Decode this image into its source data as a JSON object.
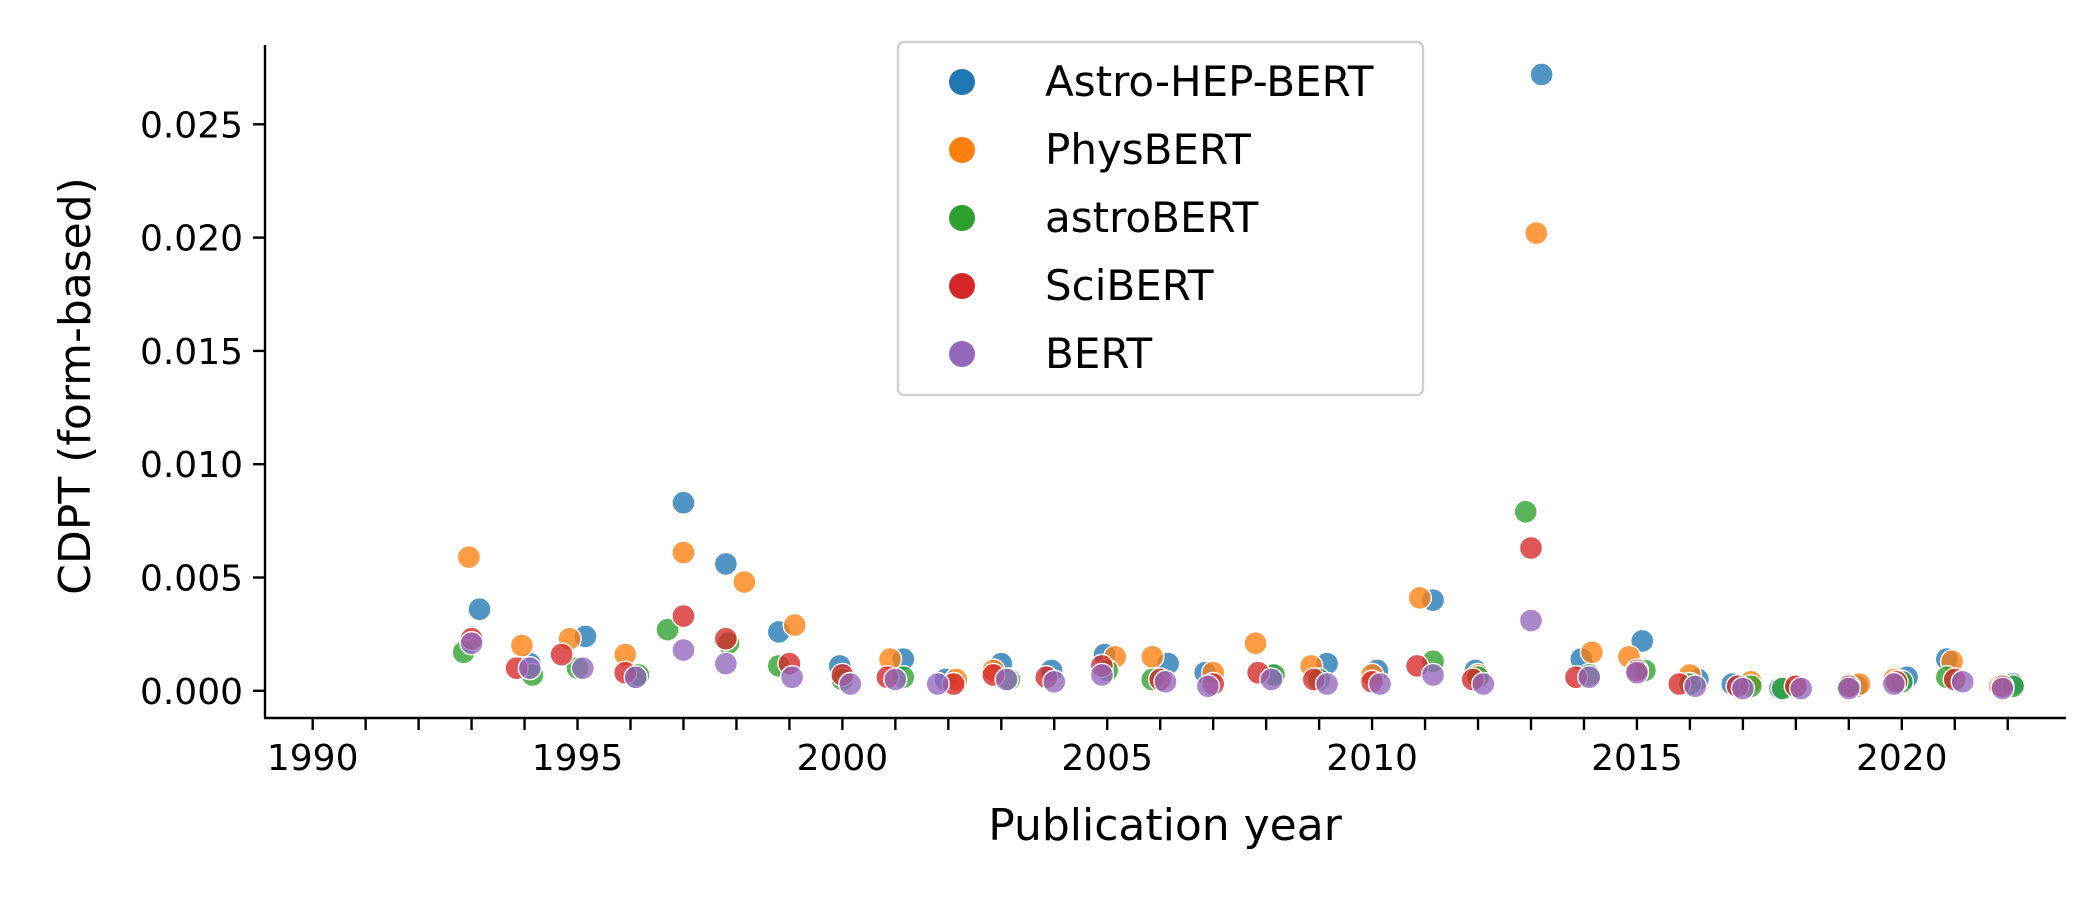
{
  "chart_data": {
    "type": "scatter",
    "title": "",
    "xlabel": "Publication year",
    "ylabel": "CDPT (form-based)",
    "xlim": [
      1989.1,
      2023.1
    ],
    "ylim": [
      -0.0012,
      0.0285
    ],
    "xticks_major": [
      1990,
      1995,
      2000,
      2005,
      2010,
      2015,
      2020
    ],
    "xtick_labels": [
      "1990",
      "1995",
      "2000",
      "2005",
      "2010",
      "2015",
      "2020"
    ],
    "xticks_minor": [
      1991,
      1992,
      1993,
      1994,
      1996,
      1997,
      1998,
      1999,
      2001,
      2002,
      2003,
      2004,
      2006,
      2007,
      2008,
      2009,
      2011,
      2012,
      2013,
      2014,
      2016,
      2017,
      2018,
      2019,
      2021,
      2022
    ],
    "yticks": [
      0.0,
      0.005,
      0.01,
      0.015,
      0.02,
      0.025
    ],
    "ytick_labels": [
      "0.000",
      "0.005",
      "0.010",
      "0.015",
      "0.020",
      "0.025"
    ],
    "grid": false,
    "legend_position": "top-center",
    "series": [
      {
        "name": "Astro-HEP-BERT",
        "color": "#1f77b4",
        "points": [
          [
            1993.15,
            0.0036
          ],
          [
            1994.1,
            0.0012
          ],
          [
            1995.15,
            0.0024
          ],
          [
            1996.1,
            0.0006
          ],
          [
            1997.0,
            0.0083
          ],
          [
            1997.8,
            0.0056
          ],
          [
            1998.8,
            0.0026
          ],
          [
            1999.95,
            0.0011
          ],
          [
            2001.15,
            0.0014
          ],
          [
            2001.95,
            0.0005
          ],
          [
            2003.0,
            0.0012
          ],
          [
            2003.95,
            0.0009
          ],
          [
            2004.95,
            0.0016
          ],
          [
            2006.15,
            0.0012
          ],
          [
            2006.85,
            0.0008
          ],
          [
            2008.1,
            0.0007
          ],
          [
            2009.15,
            0.0012
          ],
          [
            2010.1,
            0.0009
          ],
          [
            2011.15,
            0.004
          ],
          [
            2011.95,
            0.0009
          ],
          [
            2013.2,
            0.0272
          ],
          [
            2013.95,
            0.0014
          ],
          [
            2015.1,
            0.0022
          ],
          [
            2016.15,
            0.0005
          ],
          [
            2016.8,
            0.0003
          ],
          [
            2017.7,
            0.0001
          ],
          [
            2019.15,
            0.0002
          ],
          [
            2020.1,
            0.0006
          ],
          [
            2020.85,
            0.0014
          ],
          [
            2022.1,
            0.0003
          ]
        ]
      },
      {
        "name": "PhysBERT",
        "color": "#ff7f0e",
        "points": [
          [
            1992.95,
            0.0059
          ],
          [
            1993.95,
            0.002
          ],
          [
            1994.85,
            0.0023
          ],
          [
            1995.9,
            0.0016
          ],
          [
            1997.0,
            0.0061
          ],
          [
            1998.15,
            0.0048
          ],
          [
            1999.1,
            0.0029
          ],
          [
            2000.9,
            0.0014
          ],
          [
            2002.15,
            0.0005
          ],
          [
            2002.85,
            0.0009
          ],
          [
            2005.15,
            0.0015
          ],
          [
            2005.85,
            0.0015
          ],
          [
            2007.0,
            0.0008
          ],
          [
            2007.8,
            0.0021
          ],
          [
            2008.85,
            0.0011
          ],
          [
            2010.0,
            0.0007
          ],
          [
            2010.9,
            0.0041
          ],
          [
            2012.0,
            0.0007
          ],
          [
            2013.1,
            0.0202
          ],
          [
            2014.15,
            0.0017
          ],
          [
            2014.85,
            0.0015
          ],
          [
            2016.0,
            0.0007
          ],
          [
            2017.15,
            0.0004
          ],
          [
            2018.0,
            0.0002
          ],
          [
            2019.2,
            0.0003
          ],
          [
            2019.85,
            0.0005
          ],
          [
            2020.95,
            0.0013
          ],
          [
            2021.85,
            0.0002
          ]
        ]
      },
      {
        "name": "astroBERT",
        "color": "#2ca02c",
        "points": [
          [
            1992.85,
            0.0017
          ],
          [
            1994.15,
            0.0007
          ],
          [
            1995.0,
            0.001
          ],
          [
            1996.15,
            0.0007
          ],
          [
            1996.7,
            0.0027
          ],
          [
            1997.85,
            0.0021
          ],
          [
            1998.8,
            0.0011
          ],
          [
            2000.0,
            0.0005
          ],
          [
            2001.15,
            0.0006
          ],
          [
            2003.15,
            0.0005
          ],
          [
            2005.0,
            0.0009
          ],
          [
            2005.85,
            0.0005
          ],
          [
            2008.15,
            0.0007
          ],
          [
            2009.0,
            0.0005
          ],
          [
            2011.15,
            0.0013
          ],
          [
            2012.0,
            0.0006
          ],
          [
            2012.9,
            0.0079
          ],
          [
            2014.1,
            0.0007
          ],
          [
            2015.15,
            0.0009
          ],
          [
            2016.0,
            0.0003
          ],
          [
            2017.15,
            0.0002
          ],
          [
            2017.75,
            0.0001
          ],
          [
            2019.0,
            0.0002
          ],
          [
            2020.0,
            0.0004
          ],
          [
            2020.85,
            0.0006
          ],
          [
            2022.1,
            0.0002
          ]
        ]
      },
      {
        "name": "SciBERT",
        "color": "#d62728",
        "points": [
          [
            1993.0,
            0.0023
          ],
          [
            1993.85,
            0.001
          ],
          [
            1994.7,
            0.0016
          ],
          [
            1995.9,
            0.0008
          ],
          [
            1997.0,
            0.0033
          ],
          [
            1997.8,
            0.0023
          ],
          [
            1999.0,
            0.0012
          ],
          [
            2000.0,
            0.0007
          ],
          [
            2000.85,
            0.0006
          ],
          [
            2002.1,
            0.0003
          ],
          [
            2002.85,
            0.0007
          ],
          [
            2003.85,
            0.0006
          ],
          [
            2004.9,
            0.0011
          ],
          [
            2006.0,
            0.0005
          ],
          [
            2007.0,
            0.0003
          ],
          [
            2007.85,
            0.0008
          ],
          [
            2008.9,
            0.0005
          ],
          [
            2010.0,
            0.0004
          ],
          [
            2010.85,
            0.0011
          ],
          [
            2011.9,
            0.0005
          ],
          [
            2013.0,
            0.0063
          ],
          [
            2013.85,
            0.0006
          ],
          [
            2015.0,
            0.0009
          ],
          [
            2015.8,
            0.0003
          ],
          [
            2016.9,
            0.0002
          ],
          [
            2018.0,
            0.0002
          ],
          [
            2019.0,
            0.0002
          ],
          [
            2019.9,
            0.0004
          ],
          [
            2021.0,
            0.0005
          ],
          [
            2021.9,
            0.0002
          ]
        ]
      },
      {
        "name": "BERT",
        "color": "#9467bd",
        "points": [
          [
            1993.0,
            0.0021
          ],
          [
            1994.1,
            0.001
          ],
          [
            1995.1,
            0.001
          ],
          [
            1996.1,
            0.0006
          ],
          [
            1997.0,
            0.0018
          ],
          [
            1997.8,
            0.0012
          ],
          [
            1999.05,
            0.0006
          ],
          [
            2000.15,
            0.0003
          ],
          [
            2001.0,
            0.0005
          ],
          [
            2001.8,
            0.0003
          ],
          [
            2003.1,
            0.0005
          ],
          [
            2004.0,
            0.0004
          ],
          [
            2004.9,
            0.0007
          ],
          [
            2006.1,
            0.0004
          ],
          [
            2006.9,
            0.0002
          ],
          [
            2008.1,
            0.0005
          ],
          [
            2009.15,
            0.0003
          ],
          [
            2010.15,
            0.0003
          ],
          [
            2011.15,
            0.0007
          ],
          [
            2012.1,
            0.0003
          ],
          [
            2013.0,
            0.0031
          ],
          [
            2014.1,
            0.0006
          ],
          [
            2015.0,
            0.0008
          ],
          [
            2016.1,
            0.0002
          ],
          [
            2017.0,
            0.0001
          ],
          [
            2018.1,
            0.0001
          ],
          [
            2019.0,
            0.0001
          ],
          [
            2019.85,
            0.0003
          ],
          [
            2021.15,
            0.0004
          ],
          [
            2021.9,
            0.0001
          ]
        ]
      }
    ]
  }
}
